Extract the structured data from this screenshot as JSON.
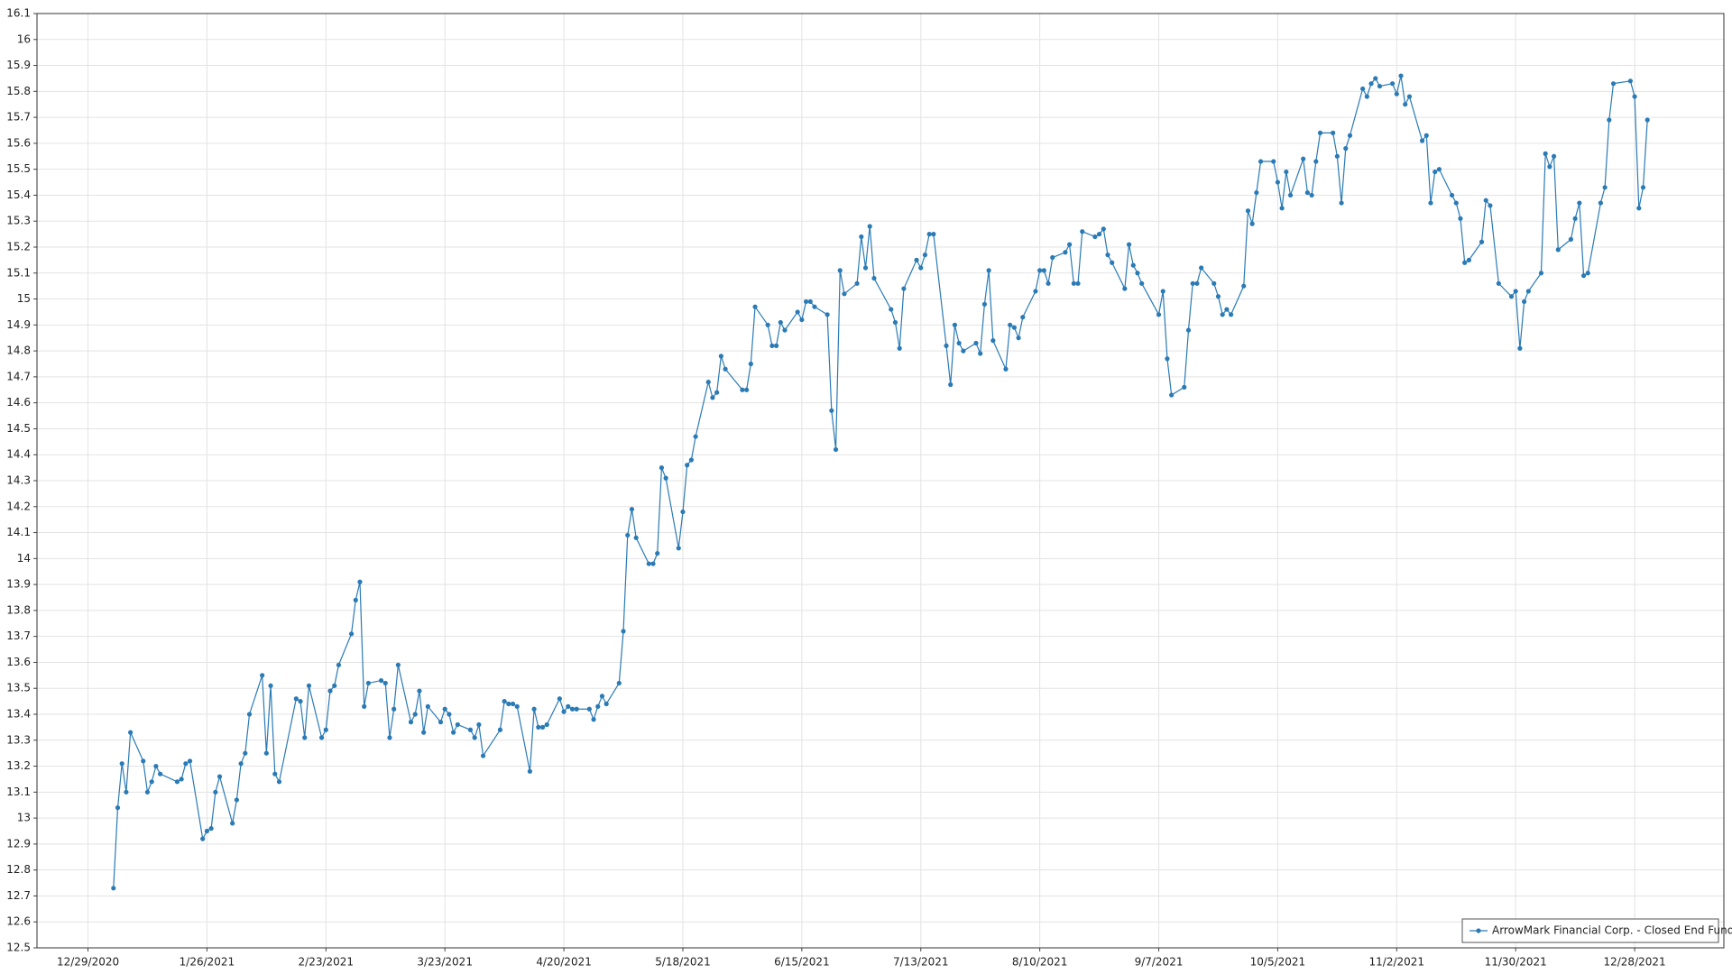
{
  "chart_data": {
    "type": "line",
    "x": [
      "1/4/2021",
      "1/5/2021",
      "1/6/2021",
      "1/7/2021",
      "1/8/2021",
      "1/11/2021",
      "1/12/2021",
      "1/13/2021",
      "1/14/2021",
      "1/15/2021",
      "1/19/2021",
      "1/20/2021",
      "1/21/2021",
      "1/22/2021",
      "1/25/2021",
      "1/26/2021",
      "1/27/2021",
      "1/28/2021",
      "1/29/2021",
      "2/1/2021",
      "2/2/2021",
      "2/3/2021",
      "2/4/2021",
      "2/5/2021",
      "2/8/2021",
      "2/9/2021",
      "2/10/2021",
      "2/11/2021",
      "2/12/2021",
      "2/16/2021",
      "2/17/2021",
      "2/18/2021",
      "2/19/2021",
      "2/22/2021",
      "2/23/2021",
      "2/24/2021",
      "2/25/2021",
      "2/26/2021",
      "3/1/2021",
      "3/2/2021",
      "3/3/2021",
      "3/4/2021",
      "3/5/2021",
      "3/8/2021",
      "3/9/2021",
      "3/10/2021",
      "3/11/2021",
      "3/12/2021",
      "3/15/2021",
      "3/16/2021",
      "3/17/2021",
      "3/18/2021",
      "3/19/2021",
      "3/22/2021",
      "3/23/2021",
      "3/24/2021",
      "3/25/2021",
      "3/26/2021",
      "3/29/2021",
      "3/30/2021",
      "3/31/2021",
      "4/1/2021",
      "4/5/2021",
      "4/6/2021",
      "4/7/2021",
      "4/8/2021",
      "4/9/2021",
      "4/12/2021",
      "4/13/2021",
      "4/14/2021",
      "4/15/2021",
      "4/16/2021",
      "4/19/2021",
      "4/20/2021",
      "4/21/2021",
      "4/22/2021",
      "4/23/2021",
      "4/26/2021",
      "4/27/2021",
      "4/28/2021",
      "4/29/2021",
      "4/30/2021",
      "5/3/2021",
      "5/4/2021",
      "5/5/2021",
      "5/6/2021",
      "5/7/2021",
      "5/10/2021",
      "5/11/2021",
      "5/12/2021",
      "5/13/2021",
      "5/14/2021",
      "5/17/2021",
      "5/18/2021",
      "5/19/2021",
      "5/20/2021",
      "5/21/2021",
      "5/24/2021",
      "5/25/2021",
      "5/26/2021",
      "5/27/2021",
      "5/28/2021",
      "6/1/2021",
      "6/2/2021",
      "6/3/2021",
      "6/4/2021",
      "6/7/2021",
      "6/8/2021",
      "6/9/2021",
      "6/10/2021",
      "6/11/2021",
      "6/14/2021",
      "6/15/2021",
      "6/16/2021",
      "6/17/2021",
      "6/18/2021",
      "6/21/2021",
      "6/22/2021",
      "6/23/2021",
      "6/24/2021",
      "6/25/2021",
      "6/28/2021",
      "6/29/2021",
      "6/30/2021",
      "7/1/2021",
      "7/2/2021",
      "7/6/2021",
      "7/7/2021",
      "7/8/2021",
      "7/9/2021",
      "7/12/2021",
      "7/13/2021",
      "7/14/2021",
      "7/15/2021",
      "7/16/2021",
      "7/19/2021",
      "7/20/2021",
      "7/21/2021",
      "7/22/2021",
      "7/23/2021",
      "7/26/2021",
      "7/27/2021",
      "7/28/2021",
      "7/29/2021",
      "7/30/2021",
      "8/2/2021",
      "8/3/2021",
      "8/4/2021",
      "8/5/2021",
      "8/6/2021",
      "8/9/2021",
      "8/10/2021",
      "8/11/2021",
      "8/12/2021",
      "8/13/2021",
      "8/16/2021",
      "8/17/2021",
      "8/18/2021",
      "8/19/2021",
      "8/20/2021",
      "8/23/2021",
      "8/24/2021",
      "8/25/2021",
      "8/26/2021",
      "8/27/2021",
      "8/30/2021",
      "8/31/2021",
      "9/1/2021",
      "9/2/2021",
      "9/3/2021",
      "9/7/2021",
      "9/8/2021",
      "9/9/2021",
      "9/10/2021",
      "9/13/2021",
      "9/14/2021",
      "9/15/2021",
      "9/16/2021",
      "9/17/2021",
      "9/20/2021",
      "9/21/2021",
      "9/22/2021",
      "9/23/2021",
      "9/24/2021",
      "9/27/2021",
      "9/28/2021",
      "9/29/2021",
      "9/30/2021",
      "10/1/2021",
      "10/4/2021",
      "10/5/2021",
      "10/6/2021",
      "10/7/2021",
      "10/8/2021",
      "10/11/2021",
      "10/12/2021",
      "10/13/2021",
      "10/14/2021",
      "10/15/2021",
      "10/18/2021",
      "10/19/2021",
      "10/20/2021",
      "10/21/2021",
      "10/22/2021",
      "10/25/2021",
      "10/26/2021",
      "10/27/2021",
      "10/28/2021",
      "10/29/2021",
      "11/1/2021",
      "11/2/2021",
      "11/3/2021",
      "11/4/2021",
      "11/5/2021",
      "11/8/2021",
      "11/9/2021",
      "11/10/2021",
      "11/11/2021",
      "11/12/2021",
      "11/15/2021",
      "11/16/2021",
      "11/17/2021",
      "11/18/2021",
      "11/19/2021",
      "11/22/2021",
      "11/23/2021",
      "11/24/2021",
      "11/26/2021",
      "11/29/2021",
      "11/30/2021",
      "12/1/2021",
      "12/2/2021",
      "12/3/2021",
      "12/6/2021",
      "12/7/2021",
      "12/8/2021",
      "12/9/2021",
      "12/10/2021",
      "12/13/2021",
      "12/14/2021",
      "12/15/2021",
      "12/16/2021",
      "12/17/2021",
      "12/20/2021",
      "12/21/2021",
      "12/22/2021",
      "12/23/2021",
      "12/27/2021",
      "12/28/2021",
      "12/29/2021",
      "12/30/2021",
      "12/31/2021"
    ],
    "series": [
      {
        "name": "ArrowMark Financial Corp. - Closed End Fund",
        "color": "#2a7ab5",
        "values": [
          12.73,
          13.04,
          13.21,
          13.1,
          13.33,
          13.22,
          13.1,
          13.14,
          13.2,
          13.17,
          13.14,
          13.15,
          13.21,
          13.22,
          12.92,
          12.95,
          12.96,
          13.1,
          13.16,
          12.98,
          13.07,
          13.21,
          13.25,
          13.4,
          13.55,
          13.25,
          13.51,
          13.17,
          13.14,
          13.46,
          13.45,
          13.31,
          13.51,
          13.31,
          13.34,
          13.49,
          13.51,
          13.59,
          13.71,
          13.84,
          13.91,
          13.43,
          13.52,
          13.53,
          13.52,
          13.31,
          13.42,
          13.59,
          13.37,
          13.4,
          13.49,
          13.33,
          13.43,
          13.37,
          13.42,
          13.4,
          13.33,
          13.36,
          13.34,
          13.31,
          13.36,
          13.24,
          13.34,
          13.45,
          13.44,
          13.44,
          13.43,
          13.18,
          13.42,
          13.35,
          13.35,
          13.36,
          13.46,
          13.41,
          13.43,
          13.42,
          13.42,
          13.42,
          13.38,
          13.43,
          13.47,
          13.44,
          13.52,
          13.72,
          14.09,
          14.19,
          14.08,
          13.98,
          13.98,
          14.02,
          14.35,
          14.31,
          14.04,
          14.18,
          14.36,
          14.38,
          14.47,
          14.68,
          14.62,
          14.64,
          14.78,
          14.73,
          14.65,
          14.65,
          14.75,
          14.97,
          14.9,
          14.82,
          14.82,
          14.91,
          14.88,
          14.95,
          14.92,
          14.99,
          14.99,
          14.97,
          14.94,
          14.57,
          14.42,
          15.11,
          15.02,
          15.06,
          15.24,
          15.12,
          15.28,
          15.08,
          14.96,
          14.91,
          14.81,
          15.04,
          15.15,
          15.12,
          15.17,
          15.25,
          15.25,
          14.82,
          14.67,
          14.9,
          14.83,
          14.8,
          14.83,
          14.79,
          14.98,
          15.11,
          14.84,
          14.73,
          14.9,
          14.89,
          14.85,
          14.93,
          15.03,
          15.11,
          15.11,
          15.06,
          15.16,
          15.18,
          15.21,
          15.06,
          15.06,
          15.26,
          15.24,
          15.25,
          15.27,
          15.17,
          15.14,
          15.04,
          15.21,
          15.13,
          15.1,
          15.06,
          14.94,
          15.03,
          14.77,
          14.63,
          14.66,
          14.88,
          15.06,
          15.06,
          15.12,
          15.06,
          15.01,
          14.94,
          14.96,
          14.94,
          15.05,
          15.34,
          15.29,
          15.41,
          15.53,
          15.53,
          15.45,
          15.35,
          15.49,
          15.4,
          15.54,
          15.41,
          15.4,
          15.53,
          15.64,
          15.64,
          15.55,
          15.37,
          15.58,
          15.63,
          15.81,
          15.78,
          15.83,
          15.85,
          15.82,
          15.83,
          15.79,
          15.86,
          15.75,
          15.78,
          15.61,
          15.63,
          15.37,
          15.49,
          15.5,
          15.4,
          15.37,
          15.31,
          15.14,
          15.15,
          15.22,
          15.38,
          15.36,
          15.06,
          15.01,
          15.03,
          14.81,
          14.99,
          15.03,
          15.1,
          15.56,
          15.51,
          15.55,
          15.19,
          15.23,
          15.31,
          15.37,
          15.09,
          15.1,
          15.37,
          15.43,
          15.69,
          15.83,
          15.84,
          15.78,
          15.35,
          15.43,
          15.69
        ]
      }
    ],
    "xlim": [
      "12/17/2020",
      "1/18/2022"
    ],
    "xticks": [
      "12/29/2020",
      "1/26/2021",
      "2/23/2021",
      "3/23/2021",
      "4/20/2021",
      "5/18/2021",
      "6/15/2021",
      "7/13/2021",
      "8/10/2021",
      "9/7/2021",
      "10/5/2021",
      "11/2/2021",
      "11/30/2021",
      "12/28/2021"
    ],
    "ylim": [
      12.5,
      16.1
    ],
    "yticks": [
      12.5,
      12.6,
      12.7,
      12.8,
      12.9,
      13,
      13.1,
      13.2,
      13.3,
      13.4,
      13.5,
      13.6,
      13.7,
      13.8,
      13.9,
      14,
      14.1,
      14.2,
      14.3,
      14.4,
      14.5,
      14.6,
      14.7,
      14.8,
      14.9,
      15,
      15.1,
      15.2,
      15.3,
      15.4,
      15.5,
      15.6,
      15.7,
      15.8,
      15.9,
      16,
      16.1
    ],
    "grid": true,
    "legend": "lower right"
  }
}
